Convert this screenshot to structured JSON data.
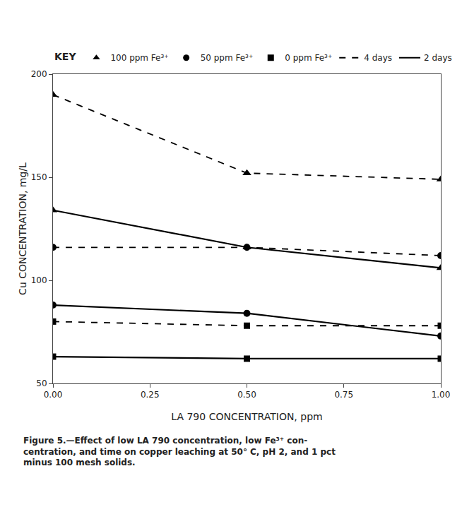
{
  "chart_data": {
    "type": "line",
    "xlabel": "LA 790 CONCENTRATION, ppm",
    "ylabel": "Cu CONCENTRATION, mg/L",
    "x": [
      0.0,
      0.5,
      1.0
    ],
    "xlim": [
      0.0,
      1.0
    ],
    "ylim": [
      50,
      200
    ],
    "xticks": [
      {
        "value": 0.0,
        "label": "0.00"
      },
      {
        "value": 0.25,
        "label": "0.25"
      },
      {
        "value": 0.5,
        "label": "0.50"
      },
      {
        "value": 0.75,
        "label": "0.75"
      },
      {
        "value": 1.0,
        "label": "1.00"
      }
    ],
    "yticks": [
      50,
      100,
      150,
      200
    ],
    "color": "black",
    "grid": false,
    "legend": "top",
    "series": [
      {
        "marker": "triangle",
        "line_style": "dashed",
        "values": [
          190,
          152,
          149
        ]
      },
      {
        "marker": "triangle",
        "line_style": "solid",
        "values": [
          134,
          116,
          106
        ]
      },
      {
        "marker": "circle",
        "line_style": "dashed",
        "values": [
          116,
          116,
          112
        ]
      },
      {
        "marker": "circle",
        "line_style": "solid",
        "values": [
          88,
          84,
          73
        ]
      },
      {
        "marker": "square",
        "line_style": "dashed",
        "values": [
          80,
          78,
          78
        ]
      },
      {
        "marker": "square",
        "line_style": "solid",
        "values": [
          63,
          62,
          62
        ]
      }
    ],
    "key": {
      "title": "KEY",
      "markers": [
        {
          "label": "100 ppm Fe³⁺",
          "marker": "triangle"
        },
        {
          "label": "50 ppm Fe³⁺",
          "marker": "circle"
        },
        {
          "label": "0 ppm Fe³⁺",
          "marker": "square"
        }
      ],
      "lines": [
        {
          "label": "4 days",
          "line_style": "dashed"
        },
        {
          "label": "2 days",
          "line_style": "solid"
        }
      ]
    },
    "annotations": [
      "Figure 5.—Effect of low LA 790 concentration, low Fe³⁺ con-",
      "centration, and time on copper leaching at 50° C, pH 2, and 1 pct",
      "minus 100 mesh solids."
    ]
  }
}
